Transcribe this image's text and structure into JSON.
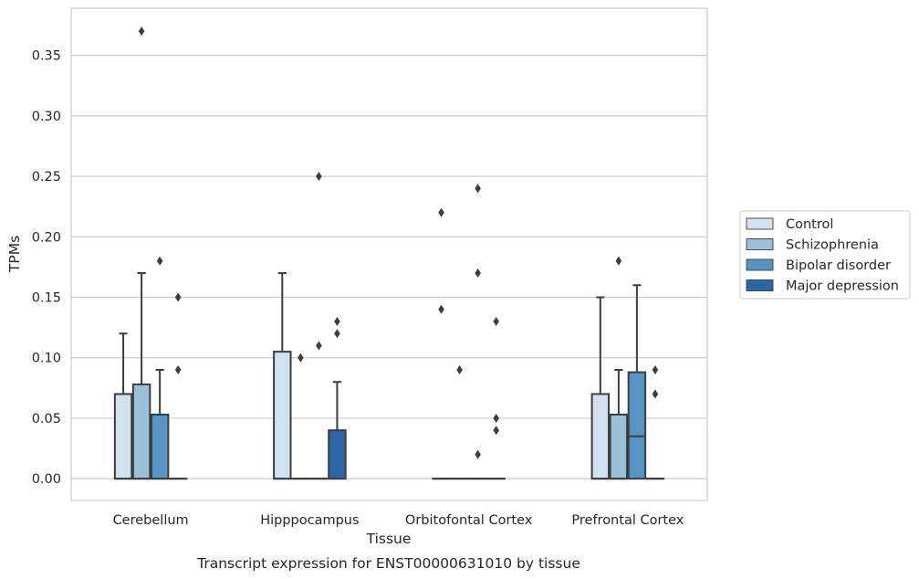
{
  "caption": "Transcript expression for ENST00000631010 by tissue",
  "chart_data": {
    "type": "box",
    "title": "",
    "xlabel": "Tissue",
    "ylabel": "TPMs",
    "ylim": [
      -0.018,
      0.389
    ],
    "yticks": [
      0.0,
      0.05,
      0.1,
      0.15,
      0.2,
      0.25,
      0.3,
      0.35
    ],
    "ytick_labels": [
      "0.00",
      "0.05",
      "0.10",
      "0.15",
      "0.20",
      "0.25",
      "0.30",
      "0.35"
    ],
    "grid": "horizontal",
    "legend_position": "right",
    "categories": [
      "Cerebellum",
      "Hipppocampus",
      "Orbitofontal Cortex",
      "Prefrontal Cortex"
    ],
    "series": [
      {
        "name": "Control",
        "color": "#d0e1f2",
        "boxes": [
          {
            "q1": 0.0,
            "median": 0.0,
            "q3": 0.07,
            "whisker_low": 0.0,
            "whisker_high": 0.12,
            "outliers": []
          },
          {
            "q1": 0.0,
            "median": 0.0,
            "q3": 0.105,
            "whisker_low": 0.0,
            "whisker_high": 0.17,
            "outliers": []
          },
          {
            "q1": 0.0,
            "median": 0.0,
            "q3": 0.0,
            "whisker_low": 0.0,
            "whisker_high": 0.0,
            "outliers": [
              0.22,
              0.14
            ]
          },
          {
            "q1": 0.0,
            "median": 0.0,
            "q3": 0.07,
            "whisker_low": 0.0,
            "whisker_high": 0.15,
            "outliers": []
          }
        ]
      },
      {
        "name": "Schizophrenia",
        "color": "#9ac0da",
        "boxes": [
          {
            "q1": 0.0,
            "median": 0.0,
            "q3": 0.078,
            "whisker_low": 0.0,
            "whisker_high": 0.17,
            "outliers": [
              0.37
            ]
          },
          {
            "q1": 0.0,
            "median": 0.0,
            "q3": 0.0,
            "whisker_low": 0.0,
            "whisker_high": 0.0,
            "outliers": [
              0.1
            ]
          },
          {
            "q1": 0.0,
            "median": 0.0,
            "q3": 0.0,
            "whisker_low": 0.0,
            "whisker_high": 0.0,
            "outliers": [
              0.09
            ]
          },
          {
            "q1": 0.0,
            "median": 0.0,
            "q3": 0.053,
            "whisker_low": 0.0,
            "whisker_high": 0.09,
            "outliers": [
              0.18
            ]
          }
        ]
      },
      {
        "name": "Bipolar disorder",
        "color": "#5495c3",
        "boxes": [
          {
            "q1": 0.0,
            "median": 0.0,
            "q3": 0.053,
            "whisker_low": 0.0,
            "whisker_high": 0.09,
            "outliers": [
              0.18
            ]
          },
          {
            "q1": 0.0,
            "median": 0.0,
            "q3": 0.0,
            "whisker_low": 0.0,
            "whisker_high": 0.0,
            "outliers": [
              0.25,
              0.11
            ]
          },
          {
            "q1": 0.0,
            "median": 0.0,
            "q3": 0.0,
            "whisker_low": 0.0,
            "whisker_high": 0.0,
            "outliers": [
              0.24,
              0.17,
              0.02
            ]
          },
          {
            "q1": 0.0,
            "median": 0.035,
            "q3": 0.088,
            "whisker_low": 0.0,
            "whisker_high": 0.16,
            "outliers": []
          }
        ]
      },
      {
        "name": "Major depression",
        "color": "#2b66a6",
        "boxes": [
          {
            "q1": 0.0,
            "median": 0.0,
            "q3": 0.0,
            "whisker_low": 0.0,
            "whisker_high": 0.0,
            "outliers": [
              0.15,
              0.09
            ]
          },
          {
            "q1": 0.0,
            "median": 0.0,
            "q3": 0.04,
            "whisker_low": 0.0,
            "whisker_high": 0.08,
            "outliers": [
              0.13,
              0.12
            ]
          },
          {
            "q1": 0.0,
            "median": 0.0,
            "q3": 0.0,
            "whisker_low": 0.0,
            "whisker_high": 0.0,
            "outliers": [
              0.13,
              0.05,
              0.04
            ]
          },
          {
            "q1": 0.0,
            "median": 0.0,
            "q3": 0.0,
            "whisker_low": 0.0,
            "whisker_high": 0.0,
            "outliers": [
              0.09,
              0.07
            ]
          }
        ]
      }
    ]
  }
}
